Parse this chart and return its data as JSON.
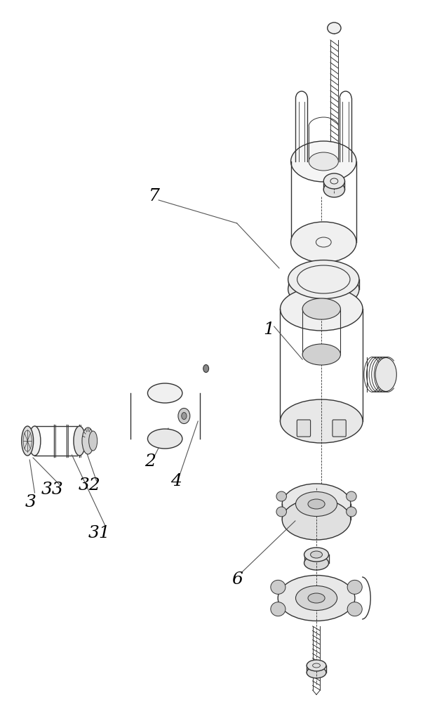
{
  "bg_color": "#ffffff",
  "line_color": "#333333",
  "label_color": "#000000",
  "label_fontsize": 18,
  "line_width": 1.2
}
